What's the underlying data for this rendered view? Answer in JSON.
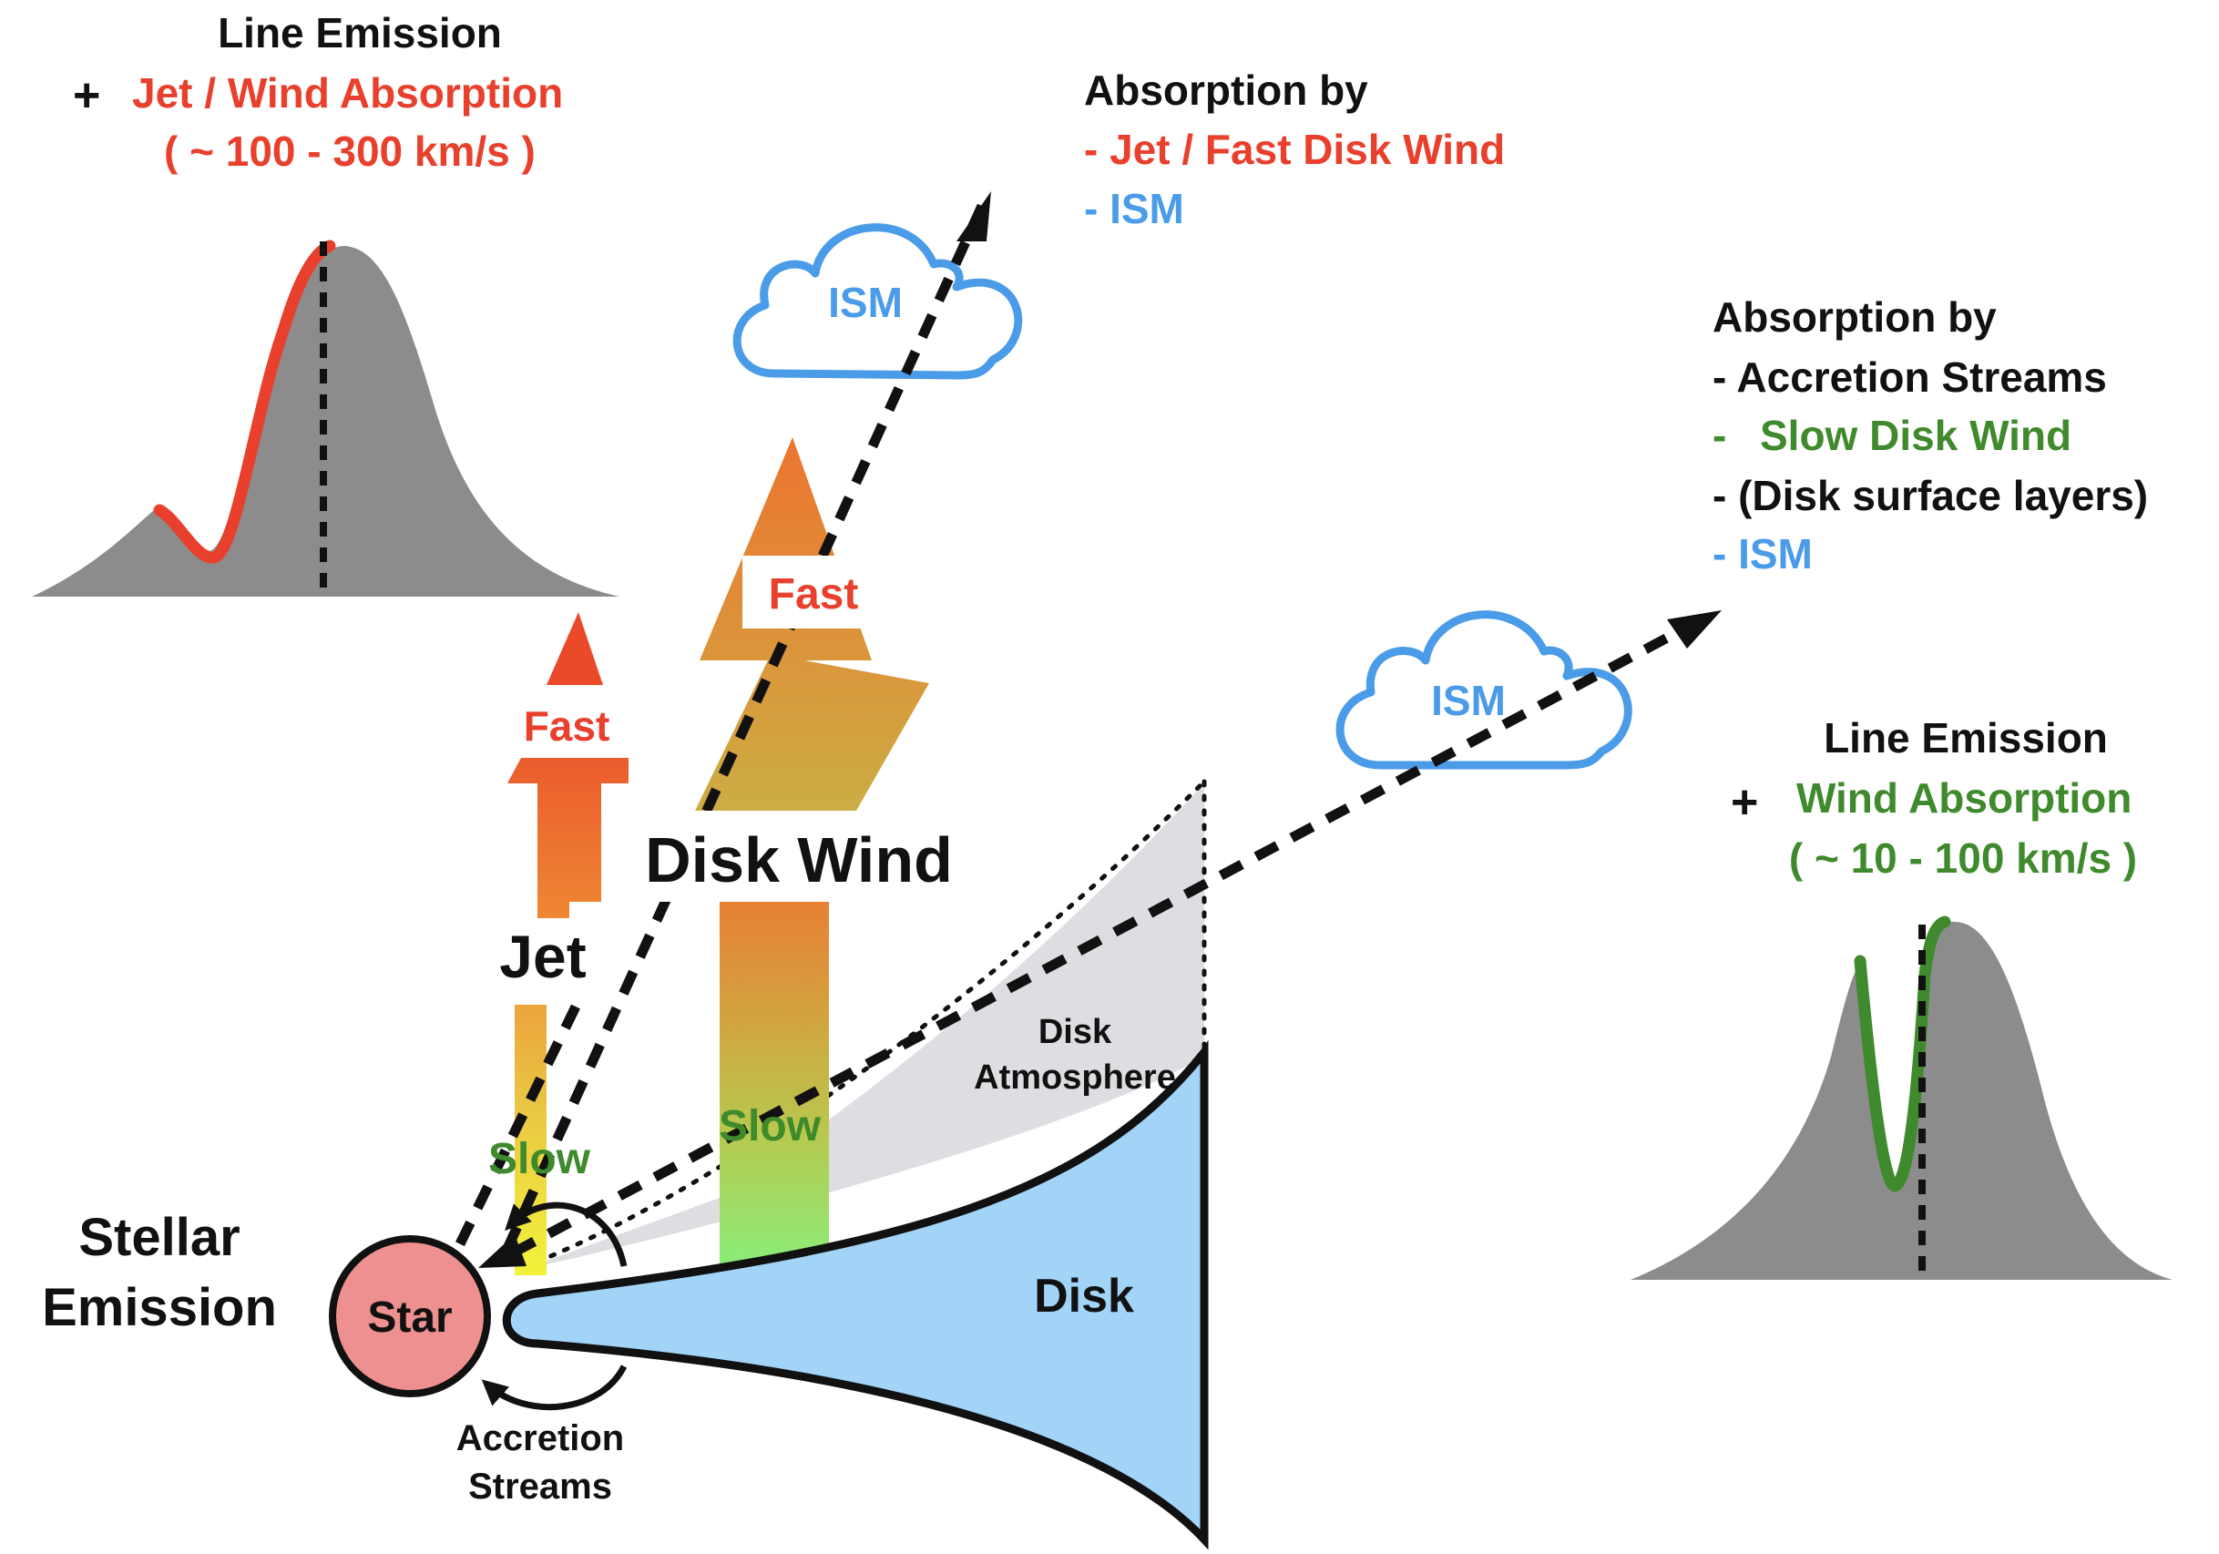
{
  "colors": {
    "red": "#e8402c",
    "green": "#3f8a2c",
    "blue": "#4a9be8",
    "black": "#111111",
    "gray": "#8c8c8c",
    "disk": "#a2d4f8",
    "star": "#ef9090",
    "atmosphere": "#dedee2"
  },
  "top_left": {
    "heading": "Line Emission",
    "plus": "+",
    "absorption": "Jet / Wind Absorption",
    "velocity": "( ~ 100 - 300 km/s )"
  },
  "top_center": {
    "heading": "Absorption by",
    "item_jet": "- Jet / Fast Disk Wind",
    "item_ism": "- ISM"
  },
  "right": {
    "heading": "Absorption by",
    "item_accretion": "- Accretion Streams",
    "item_slow_dash": "-",
    "item_slow": "Slow Disk Wind",
    "item_surface": "- (Disk surface layers)",
    "item_ism": "- ISM"
  },
  "bottom_right": {
    "heading": "Line Emission",
    "plus": "+",
    "absorption": "Wind Absorption",
    "velocity": "( ~ 10 - 100 km/s )"
  },
  "labels": {
    "ism_cloud_1": "ISM",
    "ism_cloud_2": "ISM",
    "jet_fast": "Fast",
    "jet_slow": "Slow",
    "jet": "Jet",
    "wind_fast": "Fast",
    "wind_slow": "Slow",
    "disk_wind": "Disk Wind",
    "disk_atmosphere_1": "Disk",
    "disk_atmosphere_2": "Atmosphere",
    "disk": "Disk",
    "star": "Star",
    "stellar_1": "Stellar",
    "stellar_2": "Emission",
    "accretion_1": "Accretion",
    "accretion_2": "Streams"
  }
}
